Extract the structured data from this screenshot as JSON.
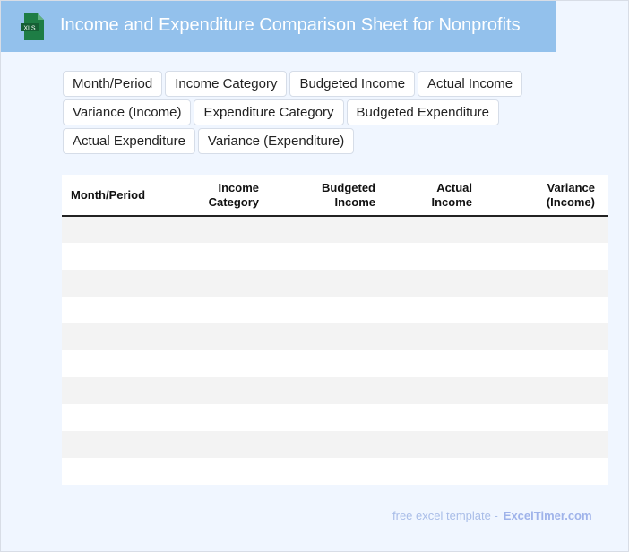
{
  "header": {
    "title": "Income and Expenditure Comparison Sheet for Nonprofits",
    "logo_text": "XLS",
    "brand_color": "#93c1ec"
  },
  "tags": [
    "Month/Period",
    "Income Category",
    "Budgeted Income",
    "Actual Income",
    "Variance (Income)",
    "Expenditure Category",
    "Budgeted Expenditure",
    "Actual Expenditure",
    "Variance (Expenditure)"
  ],
  "table": {
    "columns": [
      [
        "Month/Period"
      ],
      [
        "Income",
        "Category"
      ],
      [
        "Budgeted",
        "Income"
      ],
      [
        "Actual",
        "Income"
      ],
      [
        "Variance",
        "(Income)"
      ]
    ],
    "row_count": 10
  },
  "footer": {
    "text": "free excel template -",
    "brand": "ExcelTimer.com"
  }
}
